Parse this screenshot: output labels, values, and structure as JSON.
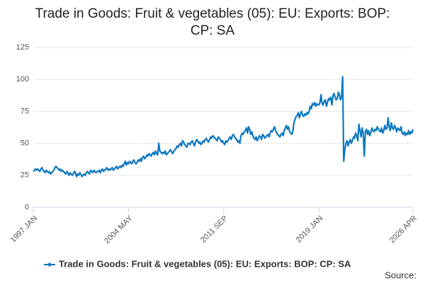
{
  "chart_data": {
    "type": "line",
    "title": "Trade in Goods: Fruit & vegetables (05): EU: Exports: BOP: CP: SA",
    "source": "Source:",
    "categories": [
      "1997 JAN",
      null,
      null,
      null,
      null,
      null,
      null,
      null,
      null,
      null,
      null,
      null,
      null,
      null,
      null,
      null,
      null,
      null,
      null,
      null,
      null,
      null,
      null,
      null,
      null,
      null,
      null,
      null,
      null,
      null,
      null,
      null,
      null,
      null,
      null,
      null,
      null,
      null,
      null,
      null,
      null,
      null,
      null,
      null,
      null,
      null,
      null,
      null,
      null,
      null,
      null,
      null,
      null,
      null,
      null,
      null,
      null,
      null,
      null,
      null,
      null,
      null,
      null,
      null,
      null,
      null,
      null,
      null,
      null,
      null,
      null,
      null,
      null,
      null,
      null,
      null,
      null,
      null,
      null,
      null,
      null,
      null,
      null,
      null,
      null,
      null,
      null,
      null,
      "2004 MAY",
      null,
      null,
      null,
      null,
      null,
      null,
      null,
      null,
      null,
      null,
      null,
      null,
      null,
      null,
      null,
      null,
      null,
      null,
      null,
      null,
      null,
      null,
      null,
      null,
      null,
      null,
      null,
      null,
      null,
      null,
      null,
      null,
      null,
      null,
      null,
      null,
      null,
      null,
      null,
      null,
      null,
      null,
      null,
      null,
      null,
      null,
      null,
      null,
      null,
      null,
      null,
      null,
      null,
      null,
      null,
      null,
      null,
      null,
      null,
      null,
      null,
      null,
      null,
      null,
      null,
      null,
      null,
      null,
      null,
      null,
      null,
      null,
      null,
      null,
      null,
      null,
      null,
      null,
      null,
      null,
      null,
      null,
      null,
      null,
      null,
      null,
      null,
      "2011 SEP",
      null,
      null,
      null,
      null,
      null,
      null,
      null,
      null,
      null,
      null,
      null,
      null,
      null,
      null,
      null,
      null,
      null,
      null,
      null,
      null,
      null,
      null,
      null,
      null,
      null,
      null,
      null,
      null,
      null,
      null,
      null,
      null,
      null,
      null,
      null,
      null,
      null,
      null,
      null,
      null,
      null,
      null,
      null,
      null,
      null,
      null,
      null,
      null,
      null,
      null,
      null,
      null,
      null,
      null,
      null,
      null,
      null,
      null,
      null,
      null,
      null,
      null,
      null,
      null,
      null,
      null,
      null,
      null,
      null,
      null,
      null,
      null,
      null,
      null,
      null,
      null,
      null,
      null,
      null,
      null,
      null,
      null,
      null,
      null,
      null,
      null,
      null,
      "2019 JAN",
      null,
      null,
      null,
      null,
      null,
      null,
      null,
      null,
      null,
      null,
      null,
      null,
      null,
      null,
      null,
      null,
      null,
      null,
      null,
      null,
      null,
      null,
      null,
      null,
      null,
      null,
      null,
      null,
      null,
      null,
      null,
      null,
      null,
      null,
      null,
      null,
      null,
      null,
      null,
      null,
      null,
      null,
      null,
      null,
      null,
      null,
      null,
      null,
      null,
      null,
      null,
      null,
      null,
      null,
      null,
      null,
      null,
      null,
      null,
      null,
      null,
      null,
      null,
      null,
      null,
      null,
      null,
      null,
      null,
      null,
      null,
      null,
      null,
      null,
      null,
      null,
      null,
      null,
      null,
      null,
      null,
      null,
      null,
      null,
      null,
      null,
      "2026 APR"
    ],
    "series": [
      {
        "name": "Trade in Goods: Fruit & vegetables (05): EU: Exports: BOP: CP: SA",
        "color": "#0f78c0",
        "values": [
          28,
          29,
          30,
          29,
          30,
          29,
          28,
          30,
          31,
          29,
          28,
          27,
          29,
          28,
          27,
          28,
          26,
          27,
          28,
          29,
          31,
          32,
          31,
          30,
          29,
          30,
          28,
          29,
          28,
          27,
          26,
          28,
          27,
          25,
          27,
          26,
          25,
          26,
          28,
          27,
          24,
          26,
          25,
          27,
          26,
          24,
          25,
          26,
          25,
          27,
          28,
          27,
          26,
          29,
          28,
          27,
          29,
          28,
          27,
          28,
          28,
          29,
          27,
          29,
          30,
          28,
          29,
          30,
          31,
          29,
          30,
          29,
          30,
          31,
          29,
          30,
          31,
          32,
          30,
          31,
          32,
          31,
          33,
          32,
          34,
          36,
          33,
          35,
          34,
          36,
          35,
          34,
          36,
          37,
          35,
          34,
          35,
          37,
          36,
          38,
          36,
          39,
          40,
          38,
          39,
          41,
          40,
          42,
          41,
          40,
          42,
          43,
          41,
          44,
          42,
          41,
          50,
          44,
          43,
          42,
          43,
          42,
          44,
          41,
          42,
          43,
          44,
          45,
          43,
          42,
          44,
          45,
          46,
          48,
          47,
          49,
          50,
          48,
          52,
          51,
          49,
          48,
          47,
          50,
          50,
          49,
          51,
          52,
          50,
          48,
          51,
          53,
          52,
          50,
          51,
          49,
          50,
          52,
          51,
          53,
          54,
          52,
          51,
          53,
          55,
          54,
          56,
          55,
          54,
          53,
          52,
          55,
          54,
          53,
          51,
          52,
          50,
          49,
          52,
          51,
          52,
          54,
          55,
          53,
          56,
          57,
          55,
          54,
          53,
          51,
          52,
          50,
          56,
          58,
          57,
          59,
          60,
          62,
          58,
          63,
          61,
          57,
          59,
          56,
          54,
          53,
          55,
          52,
          54,
          56,
          55,
          53,
          57,
          56,
          54,
          55,
          56,
          57,
          55,
          58,
          60,
          59,
          61,
          63,
          60,
          58,
          57,
          56,
          55,
          57,
          58,
          56,
          60,
          62,
          64,
          61,
          63,
          59,
          58,
          57,
          60,
          66,
          69,
          71,
          72,
          74,
          70,
          73,
          75,
          72,
          71,
          73,
          72,
          74,
          73,
          75,
          79,
          77,
          81,
          80,
          82,
          79,
          81,
          80,
          80,
          82,
          88,
          81,
          80,
          83,
          84,
          79,
          82,
          85,
          84,
          86,
          80,
          87,
          89,
          86,
          84,
          85,
          90,
          88,
          84,
          86,
          102,
          36,
          45,
          50,
          52,
          48,
          51,
          53,
          50,
          52,
          55,
          54,
          58,
          56,
          52,
          65,
          60,
          55,
          62,
          58,
          40,
          59,
          61,
          57,
          60,
          56,
          58,
          62,
          60,
          59,
          61,
          60,
          63,
          61,
          60,
          59,
          62,
          58,
          60,
          64,
          61,
          62,
          70,
          63,
          60,
          66,
          62,
          61,
          64,
          62,
          59,
          62,
          61,
          60,
          63,
          58,
          57,
          59,
          56,
          58,
          57,
          60,
          57,
          59,
          58,
          61
        ]
      }
    ],
    "ylim": [
      0,
      125
    ],
    "yticks": [
      0,
      25,
      50,
      75,
      100,
      125
    ],
    "grid": true
  }
}
